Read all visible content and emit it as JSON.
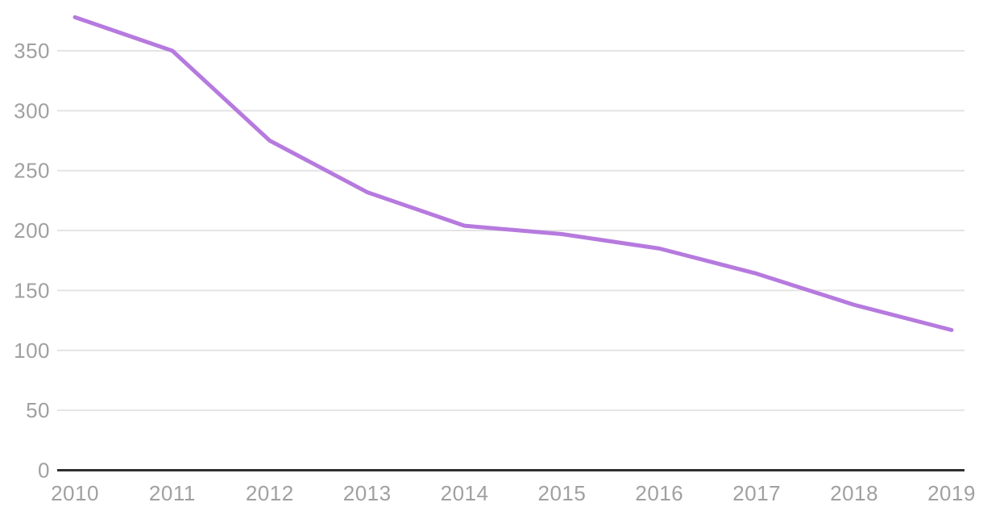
{
  "chart_data": {
    "type": "line",
    "title": "",
    "xlabel": "",
    "ylabel": "",
    "x": [
      2010,
      2011,
      2012,
      2013,
      2014,
      2015,
      2016,
      2017,
      2018,
      2019
    ],
    "values": [
      378,
      350,
      275,
      232,
      204,
      197,
      185,
      164,
      138,
      117
    ],
    "yticks": [
      0,
      50,
      100,
      150,
      200,
      250,
      300,
      350
    ],
    "ylim": [
      0,
      392
    ],
    "grid": "horizontal",
    "legend": "none",
    "line_color": "#b67ade"
  },
  "colors": {
    "line": "#b67ade",
    "gridline": "#e4e4e4",
    "axis_line": "#303030",
    "tick_label": "#a0a0a0",
    "background": "#ffffff"
  }
}
